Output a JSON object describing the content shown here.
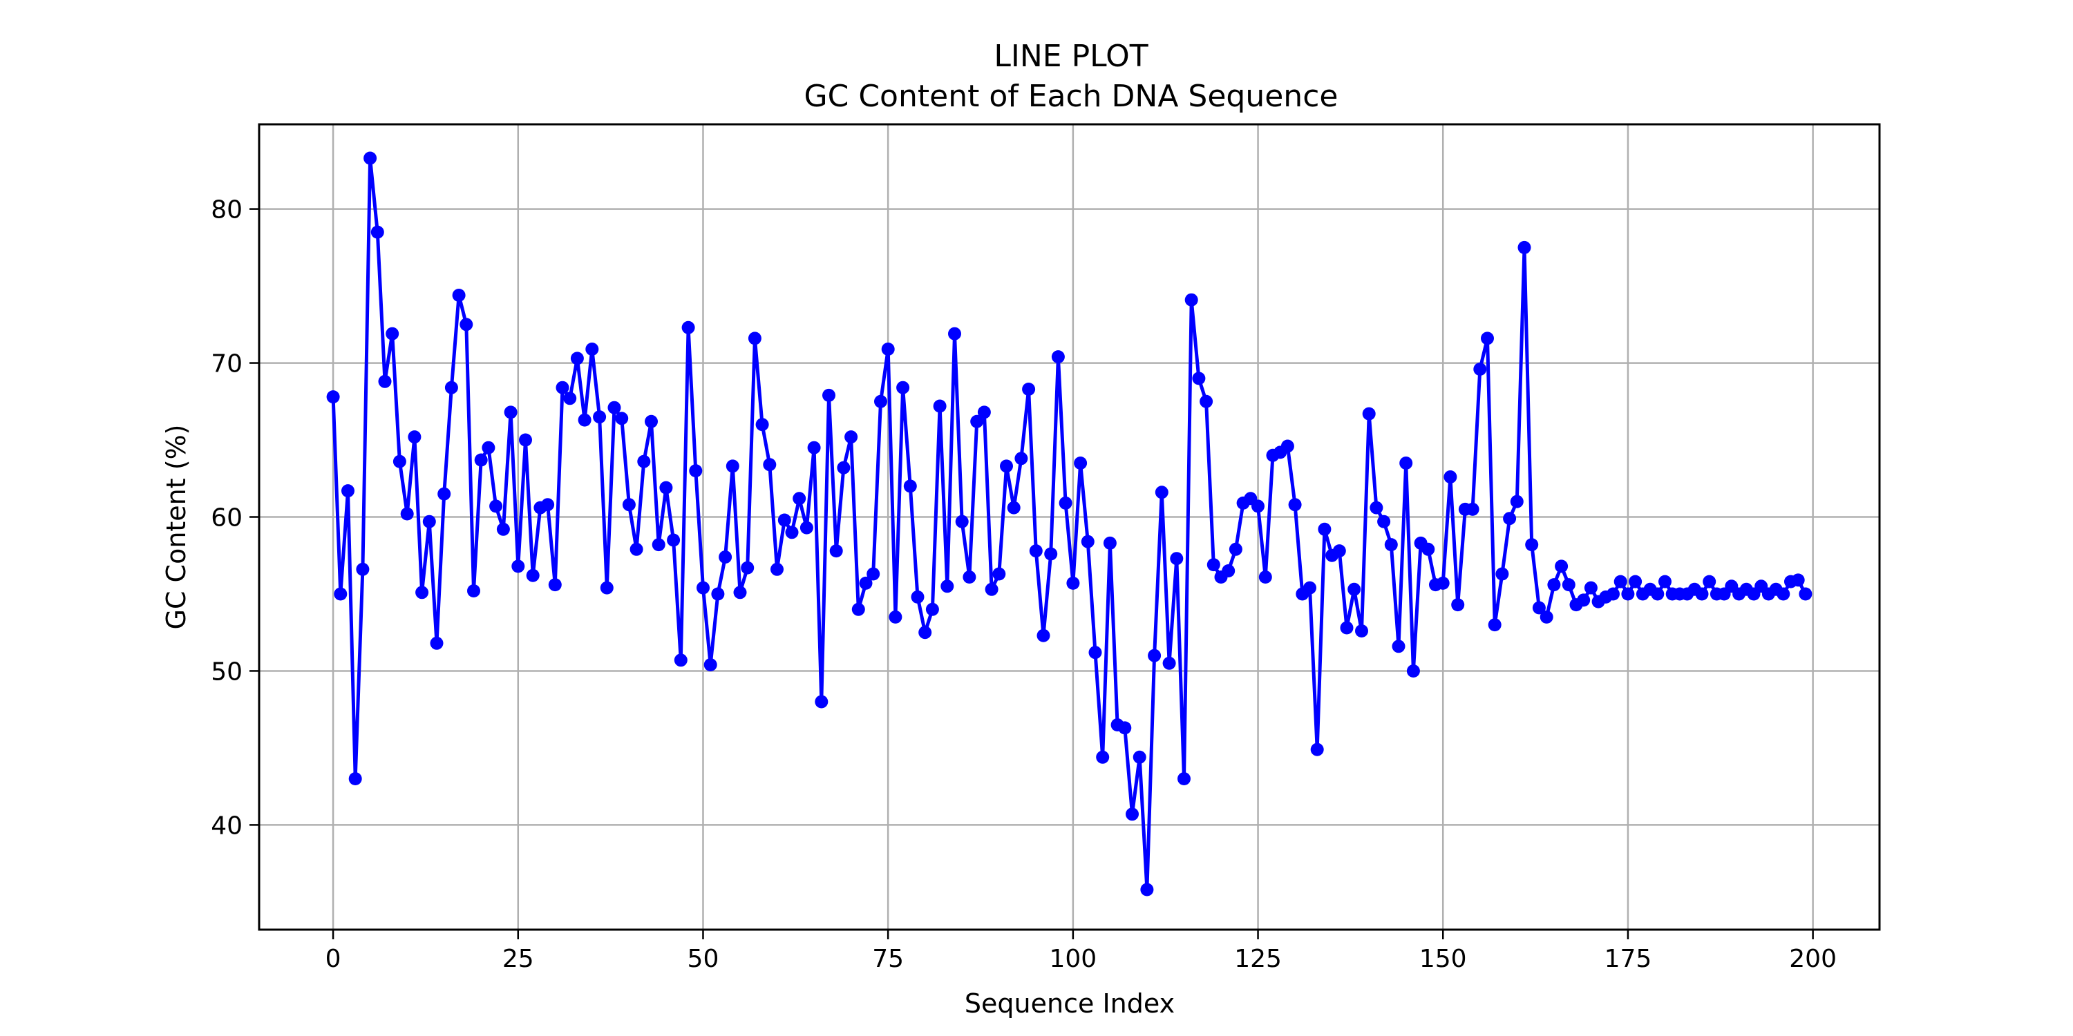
{
  "chart_data": {
    "type": "line",
    "title": "LINE PLOT",
    "subtitle": "GC Content of Each DNA Sequence",
    "xlabel": "Sequence Index",
    "ylabel": "GC Content (%)",
    "xlim": [
      -10,
      209
    ],
    "ylim": [
      33.2,
      85.5
    ],
    "xticks": [
      0,
      25,
      50,
      75,
      100,
      125,
      150,
      175,
      200
    ],
    "yticks": [
      40,
      50,
      60,
      70,
      80
    ],
    "grid": true,
    "legend": "none",
    "color": "#0000ff",
    "marker": "circle",
    "series": [
      {
        "x": [
          0,
          1,
          2,
          3,
          4,
          5,
          6,
          7,
          8,
          9,
          10,
          11,
          12,
          13,
          14,
          15,
          16,
          17,
          18,
          19,
          20,
          21,
          22,
          23,
          24,
          25,
          26,
          27,
          28,
          29,
          30,
          31,
          32,
          33,
          34,
          35,
          36,
          37,
          38,
          39,
          40,
          41,
          42,
          43,
          44,
          45,
          46,
          47,
          48,
          49,
          50,
          51,
          52,
          53,
          54,
          55,
          56,
          57,
          58,
          59,
          60,
          61,
          62,
          63,
          64,
          65,
          66,
          67,
          68,
          69,
          70,
          71,
          72,
          73,
          74,
          75,
          76,
          77,
          78,
          79,
          80,
          81,
          82,
          83,
          84,
          85,
          86,
          87,
          88,
          89,
          90,
          91,
          92,
          93,
          94,
          95,
          96,
          97,
          98,
          99,
          100,
          101,
          102,
          103,
          104,
          105,
          106,
          107,
          108,
          109,
          110,
          111,
          112,
          113,
          114,
          115,
          116,
          117,
          118,
          119,
          120,
          121,
          122,
          123,
          124,
          125,
          126,
          127,
          128,
          129,
          130,
          131,
          132,
          133,
          134,
          135,
          136,
          137,
          138,
          139,
          140,
          141,
          142,
          143,
          144,
          145,
          146,
          147,
          148,
          149,
          150,
          151,
          152,
          153,
          154,
          155,
          156,
          157,
          158,
          159,
          160,
          161,
          162,
          163,
          164,
          165,
          166,
          167,
          168,
          169,
          170,
          171,
          172,
          173,
          174,
          175,
          176,
          177,
          178,
          179,
          180,
          181,
          182,
          183,
          184,
          185,
          186,
          187,
          188,
          189,
          190,
          191,
          192,
          193,
          194,
          195,
          196,
          197,
          198,
          199
        ],
        "values": [
          67.8,
          55.0,
          61.7,
          43.0,
          56.6,
          83.3,
          78.5,
          68.8,
          71.9,
          63.6,
          60.2,
          65.2,
          55.1,
          59.7,
          51.8,
          61.5,
          68.4,
          74.4,
          72.5,
          55.2,
          63.7,
          64.5,
          60.7,
          59.2,
          66.8,
          56.8,
          65.0,
          56.2,
          60.6,
          60.8,
          55.6,
          68.4,
          67.7,
          70.3,
          66.3,
          70.9,
          66.5,
          55.4,
          67.1,
          66.4,
          60.8,
          57.9,
          63.6,
          66.2,
          58.2,
          61.9,
          58.5,
          50.7,
          72.3,
          63.0,
          55.4,
          50.4,
          55.0,
          57.4,
          63.3,
          55.1,
          56.7,
          71.6,
          66.0,
          63.4,
          56.6,
          59.8,
          59.0,
          61.2,
          59.3,
          64.5,
          48.0,
          67.9,
          57.8,
          63.2,
          65.2,
          54.0,
          55.7,
          56.3,
          67.5,
          70.9,
          53.5,
          68.4,
          62.0,
          54.8,
          52.5,
          54.0,
          67.2,
          55.5,
          71.9,
          59.7,
          56.1,
          66.2,
          66.8,
          55.3,
          56.3,
          63.3,
          60.6,
          63.8,
          68.3,
          57.8,
          52.3,
          57.6,
          70.4,
          60.9,
          55.7,
          63.5,
          58.4,
          51.2,
          44.4,
          58.3,
          46.5,
          46.3,
          40.7,
          44.4,
          35.8,
          51.0,
          61.6,
          50.5,
          57.3,
          43.0,
          74.1,
          69.0,
          67.5,
          56.9,
          56.1,
          56.5,
          57.9,
          60.9,
          61.2,
          60.7,
          56.1,
          64.0,
          64.2,
          64.6,
          60.8,
          55.0,
          55.4,
          44.9,
          59.2,
          57.5,
          57.8,
          52.8,
          55.3,
          52.6,
          66.7,
          60.6,
          59.7,
          58.2,
          51.6,
          63.5,
          50.0,
          58.3,
          57.9,
          55.6,
          55.7,
          62.6,
          54.3,
          60.5,
          60.5,
          69.6,
          71.6,
          53.0,
          56.3,
          59.9,
          61.0,
          77.5,
          58.2,
          54.1,
          53.5,
          55.6,
          56.8,
          55.6,
          54.3,
          54.6,
          55.4,
          54.5,
          54.8,
          55.0,
          55.8,
          55.0,
          55.8,
          55.0,
          55.3,
          55.0,
          55.8,
          55.0,
          55.0,
          55.0,
          55.3,
          55.0,
          55.8,
          55.0,
          55.0,
          55.5,
          55.0,
          55.3,
          55.0,
          55.5,
          55.0,
          55.3,
          55.0,
          55.8,
          55.9,
          55.0
        ]
      }
    ]
  }
}
